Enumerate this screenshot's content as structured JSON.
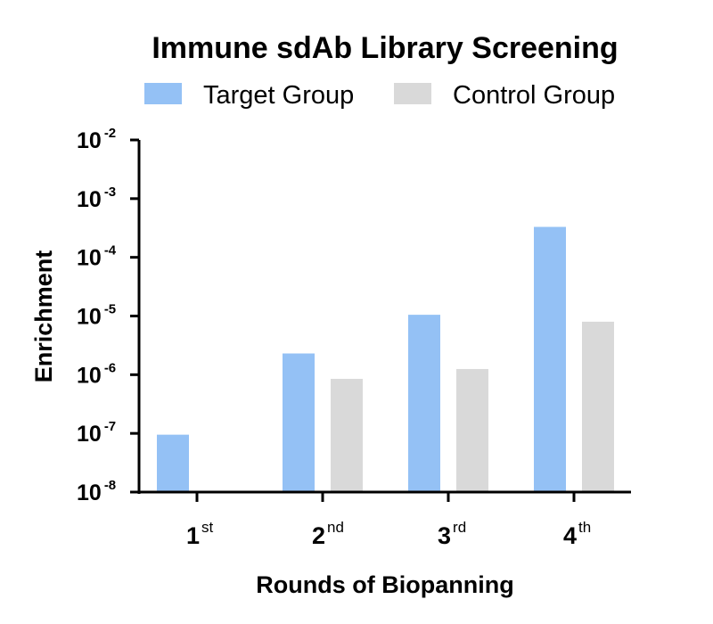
{
  "chart_data": {
    "type": "bar",
    "title": "Immune sdAb Library Screening",
    "xlabel": "Rounds of Biopanning",
    "ylabel": "Enrichment",
    "yscale": "log",
    "ylim": [
      1e-08,
      0.01
    ],
    "grid": false,
    "legend_position": "top",
    "categories": [
      {
        "base": "1",
        "sup": "st"
      },
      {
        "base": "2",
        "sup": "nd"
      },
      {
        "base": "3",
        "sup": "rd"
      },
      {
        "base": "4",
        "sup": "th"
      }
    ],
    "y_ticks": [
      {
        "value": 1e-08,
        "base": "10",
        "exp": "-8"
      },
      {
        "value": 1e-07,
        "base": "10",
        "exp": "-7"
      },
      {
        "value": 1e-06,
        "base": "10",
        "exp": "-6"
      },
      {
        "value": 1e-05,
        "base": "10",
        "exp": "-5"
      },
      {
        "value": 0.0001,
        "base": "10",
        "exp": "-4"
      },
      {
        "value": 0.001,
        "base": "10",
        "exp": "-3"
      },
      {
        "value": 0.01,
        "base": "10",
        "exp": "-2"
      }
    ],
    "series": [
      {
        "name": "Target Group",
        "color": "#94c1f5",
        "values": [
          9.5e-08,
          2.3e-06,
          1.05e-05,
          0.00033
        ]
      },
      {
        "name": "Control Group",
        "color": "#d9d9d9",
        "values": [
          null,
          8.5e-07,
          1.25e-06,
          8e-06
        ]
      }
    ]
  }
}
